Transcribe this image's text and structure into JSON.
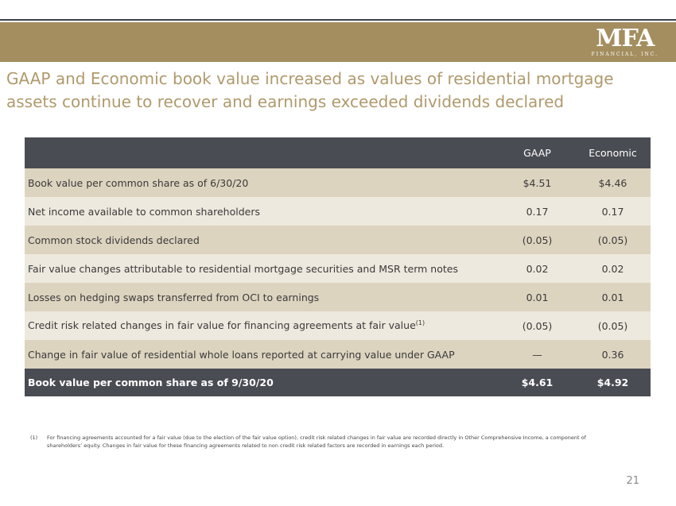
{
  "header": {
    "logo_main": "MFA",
    "logo_sub": "FINANCIAL, INC."
  },
  "title": "GAAP and Economic book value increased as values of residential mortgage assets continue to recover and earnings exceeded dividends declared",
  "table": {
    "columns": [
      "",
      "GAAP",
      "Economic"
    ],
    "rows": [
      {
        "label": "Book value per common share as of 6/30/20",
        "sup": "",
        "gaap": "$4.51",
        "economic": "$4.46"
      },
      {
        "label": "Net income available to common shareholders",
        "sup": "",
        "gaap": "0.17",
        "economic": "0.17"
      },
      {
        "label": "Common stock dividends declared",
        "sup": "",
        "gaap": "(0.05)",
        "economic": "(0.05)"
      },
      {
        "label": "Fair value changes attributable to residential mortgage securities and MSR term notes",
        "sup": "",
        "gaap": "0.02",
        "economic": "0.02"
      },
      {
        "label": "Losses on hedging swaps transferred from OCI to earnings",
        "sup": "",
        "gaap": "0.01",
        "economic": "0.01"
      },
      {
        "label": "Credit risk related changes in fair value for financing agreements at fair value",
        "sup": "(1)",
        "gaap": "(0.05)",
        "economic": "(0.05)"
      },
      {
        "label": "Change in fair value of residential whole loans reported at carrying value under GAAP",
        "sup": "",
        "gaap": "—",
        "economic": "0.36"
      }
    ],
    "total": {
      "label": "Book value per common share as of 9/30/20",
      "gaap": "$4.61",
      "economic": "$4.92"
    }
  },
  "footnote": {
    "mark": "(1)",
    "text": "For financing agreements accounted for a fair value (due to the election of the fair value option), credit risk related changes in fair value are recorded directly in Other Comprehensive Income, a component of shareholders’ equity. Changes in fair value for these financing agreements related to non credit risk related factors are recorded in earnings each period."
  },
  "page_number": "21"
}
